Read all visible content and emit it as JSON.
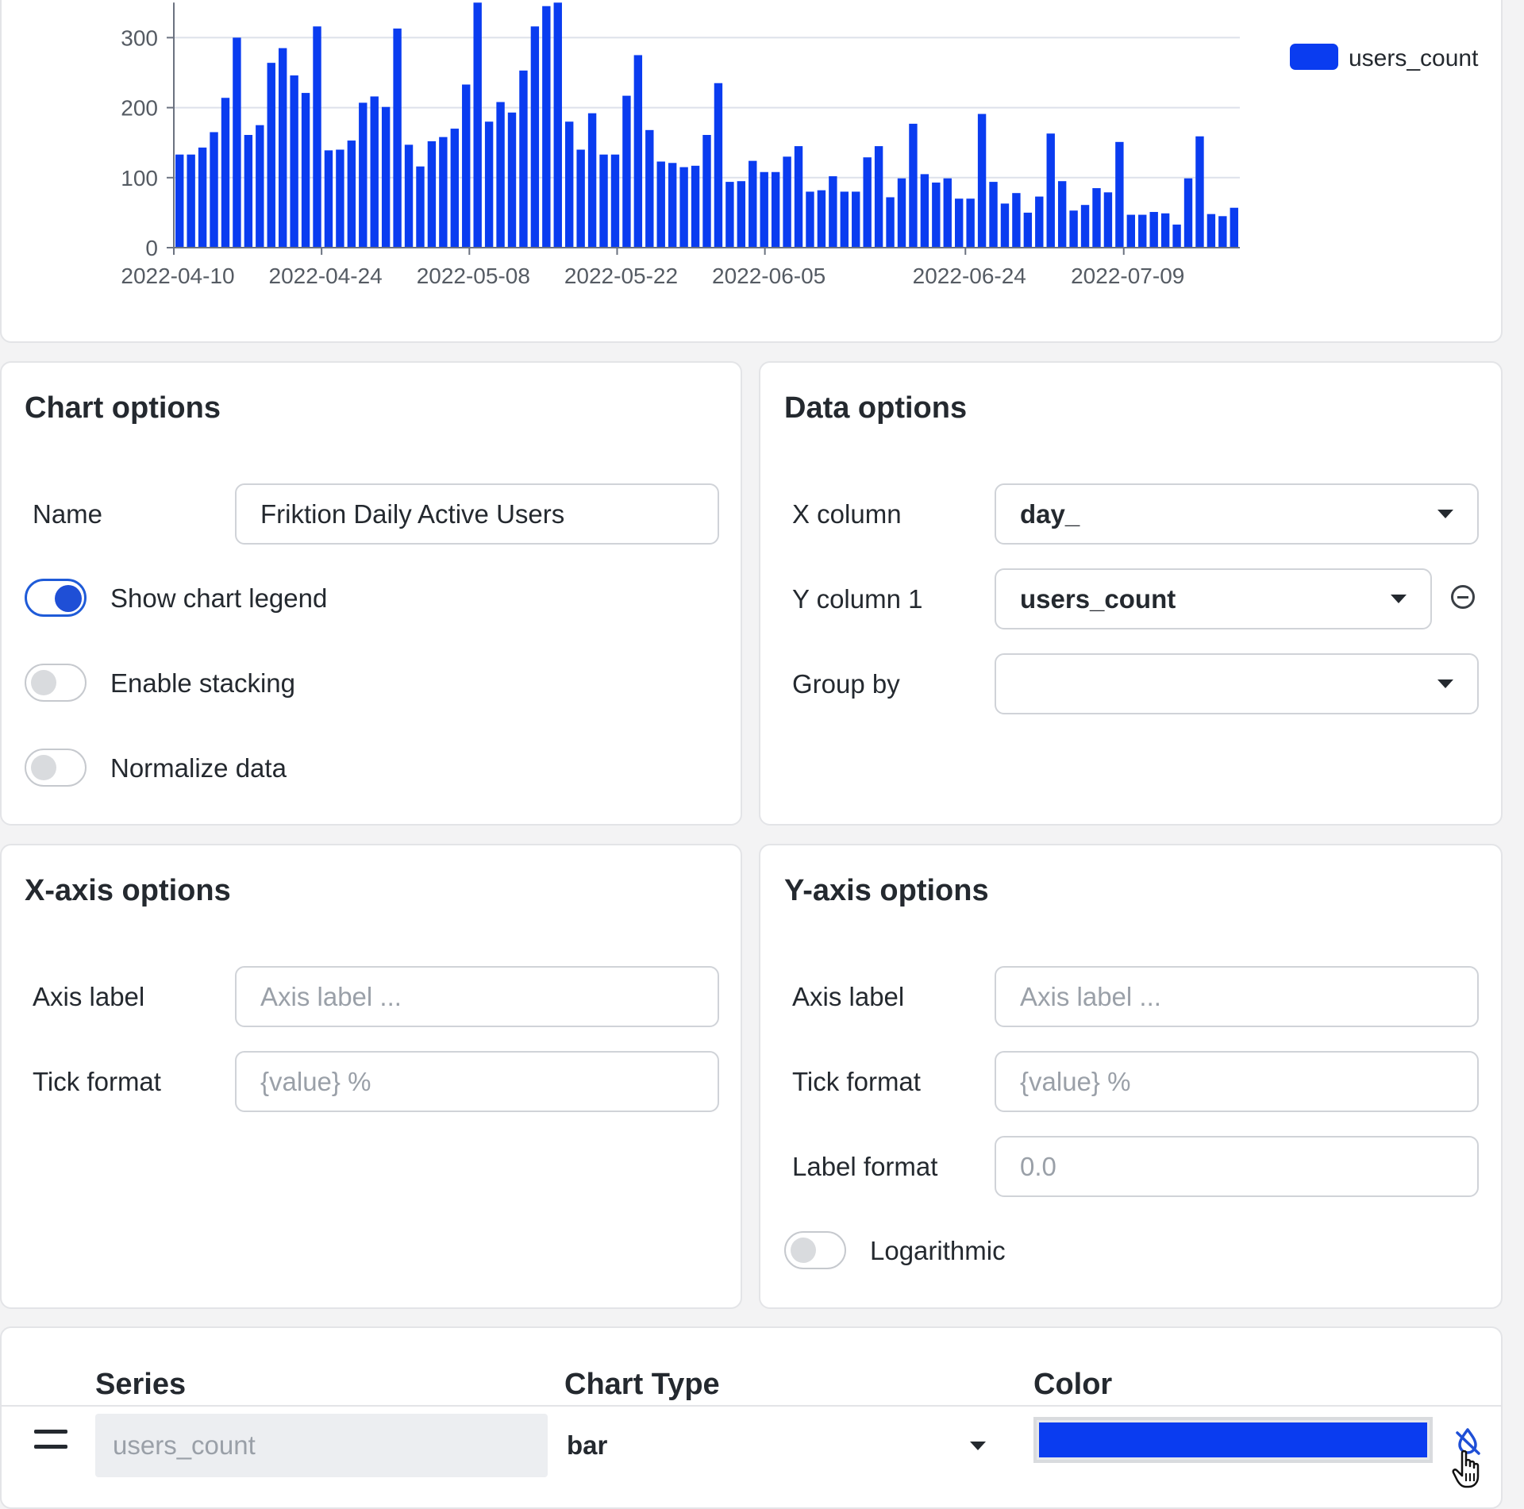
{
  "chart": {
    "legend_label": "users_count",
    "series_color": "#0a3cf0"
  },
  "chart_data": {
    "type": "bar",
    "x_start": "2022-04-10",
    "x_end": "2022-07-20",
    "x_tick_labels": [
      "2022-04-10",
      "2022-04-24",
      "2022-05-08",
      "2022-05-22",
      "2022-06-05",
      "2022-06-24",
      "2022-07-09"
    ],
    "y_ticks": [
      0,
      100,
      200,
      300
    ],
    "ylim": [
      0,
      350
    ],
    "legend": "top-right",
    "grid": true,
    "series": [
      {
        "name": "users_count",
        "values": [
          133,
          133,
          143,
          165,
          214,
          300,
          161,
          175,
          264,
          285,
          246,
          221,
          316,
          139,
          140,
          153,
          207,
          216,
          201,
          313,
          147,
          116,
          152,
          158,
          170,
          233,
          350,
          180,
          208,
          193,
          253,
          316,
          345,
          350,
          180,
          140,
          192,
          133,
          133,
          217,
          275,
          168,
          123,
          121,
          115,
          117,
          161,
          235,
          94,
          95,
          124,
          108,
          108,
          130,
          145,
          80,
          82,
          102,
          80,
          80,
          129,
          145,
          72,
          99,
          177,
          105,
          93,
          99,
          70,
          70,
          191,
          94,
          63,
          78,
          50,
          73,
          163,
          95,
          53,
          61,
          85,
          79,
          151,
          47,
          47,
          51,
          49,
          33,
          99,
          159,
          48,
          45,
          57
        ]
      }
    ]
  },
  "chart_options": {
    "title": "Chart options",
    "name_label": "Name",
    "name_value": "Friktion Daily Active Users",
    "show_legend_label": "Show chart legend",
    "show_legend_on": true,
    "stacking_label": "Enable stacking",
    "stacking_on": false,
    "normalize_label": "Normalize data",
    "normalize_on": false
  },
  "data_options": {
    "title": "Data options",
    "x_column_label": "X column",
    "x_column_value": "day_",
    "y_column_label": "Y column 1",
    "y_column_value": "users_count",
    "group_by_label": "Group by",
    "group_by_value": ""
  },
  "x_axis": {
    "title": "X-axis options",
    "axis_label": "Axis label",
    "axis_label_placeholder": "Axis label ...",
    "tick_format_label": "Tick format",
    "tick_format_placeholder": "{value} %"
  },
  "y_axis": {
    "title": "Y-axis options",
    "axis_label": "Axis label",
    "axis_label_placeholder": "Axis label ...",
    "tick_format_label": "Tick format",
    "tick_format_placeholder": "{value} %",
    "label_format_label": "Label format",
    "label_format_placeholder": "0.0",
    "logarithmic_label": "Logarithmic",
    "logarithmic_on": false
  },
  "series_table": {
    "series_header": "Series",
    "chart_type_header": "Chart Type",
    "color_header": "Color",
    "rows": [
      {
        "series": "users_count",
        "chart_type": "bar",
        "color": "#0a3cf0"
      }
    ]
  },
  "icons": {
    "legend": "legend-swatch",
    "remove": "minus-circle-icon",
    "drag": "drag-handle-icon",
    "no_color": "droplet-off-icon",
    "cursor": "hand-pointer-icon"
  }
}
